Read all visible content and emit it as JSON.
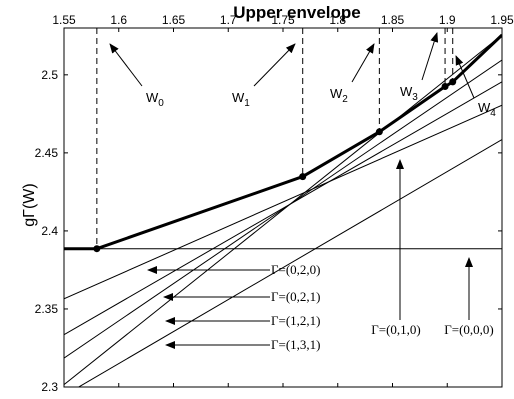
{
  "chart_data": {
    "type": "line",
    "title": "Upper envelope",
    "ylabel": "gΓ(W)",
    "xlabel": "",
    "xlim": [
      1.55,
      1.95
    ],
    "ylim": [
      2.3,
      2.53
    ],
    "x_ticks": [
      "1.55",
      "1.6",
      "1.65",
      "1.7",
      "1.75",
      "1.8",
      "1.85",
      "1.9",
      "1.95"
    ],
    "y_ticks": [
      "2.3",
      "2.35",
      "2.4",
      "2.45",
      "2.5"
    ],
    "x_axis_position": "top",
    "grid": false,
    "series": [
      {
        "name": "Γ=(0,0,0)",
        "x": [
          1.55,
          1.95
        ],
        "y": [
          2.3886,
          2.3886
        ]
      },
      {
        "name": "Γ=(0,1,0)",
        "x": [
          1.55,
          1.95
        ],
        "y": [
          2.2945,
          2.4585
        ]
      },
      {
        "name": "Γ=(0,2,0)",
        "x": [
          1.55,
          1.95
        ],
        "y": [
          2.3565,
          2.4805
        ]
      },
      {
        "name": "Γ=(0,2,1)",
        "x": [
          1.55,
          1.95
        ],
        "y": [
          2.3335,
          2.4955
        ]
      },
      {
        "name": "Γ=(1,2,1)",
        "x": [
          1.55,
          1.95
        ],
        "y": [
          2.3185,
          2.5095
        ]
      },
      {
        "name": "Γ=(1,3,1)",
        "x": [
          1.55,
          1.95
        ],
        "y": [
          2.3015,
          2.5255
        ]
      }
    ],
    "envelope": {
      "x": [
        1.55,
        1.58,
        1.768,
        1.838,
        1.898,
        1.905,
        1.95
      ],
      "y": [
        2.3886,
        2.3886,
        2.4348,
        2.4635,
        2.4925,
        2.4955,
        2.5255
      ]
    },
    "breakpoints": [
      {
        "label": "W",
        "sub": "0",
        "x": 1.58,
        "y": 2.3886
      },
      {
        "label": "W",
        "sub": "1",
        "x": 1.768,
        "y": 2.4348
      },
      {
        "label": "W",
        "sub": "2",
        "x": 1.838,
        "y": 2.4635
      },
      {
        "label": "W",
        "sub": "3",
        "x": 1.898,
        "y": 2.4925
      },
      {
        "label": "W",
        "sub": "4",
        "x": 1.905,
        "y": 2.4955
      }
    ],
    "annotations": [
      "Γ=(0,2,0)",
      "Γ=(0,2,1)",
      "Γ=(1,2,1)",
      "Γ=(1,3,1)",
      "Γ=(0,1,0)",
      "Γ=(0,0,0)"
    ]
  }
}
